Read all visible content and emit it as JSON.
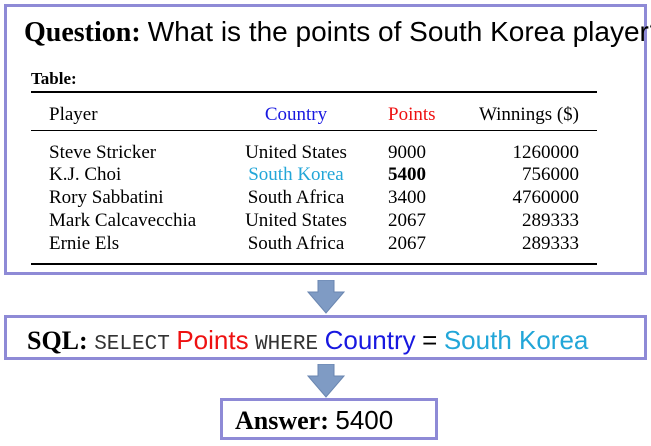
{
  "question": {
    "label": "Question:",
    "text": "What is the points of South Korea player?"
  },
  "table": {
    "label": "Table:",
    "headers": [
      "Player",
      "Country",
      "Points",
      "Winnings ($)"
    ],
    "rows": [
      [
        "Steve Stricker",
        "United States",
        "9000",
        "1260000"
      ],
      [
        "K.J. Choi",
        "South Korea",
        "5400",
        "756000"
      ],
      [
        "Rory Sabbatini",
        "South Africa",
        "3400",
        "4760000"
      ],
      [
        "Mark Calcavecchia",
        "United States",
        "2067",
        "289333"
      ],
      [
        "Ernie Els",
        "South Africa",
        "2067",
        "289333"
      ]
    ]
  },
  "sql": {
    "label": "SQL:",
    "select_kw": "SELECT",
    "column": "Points",
    "where_kw": "WHERE",
    "cond_column": "Country",
    "operator": "=",
    "value": "South Korea"
  },
  "answer": {
    "label": "Answer:",
    "value": "5400"
  },
  "colors": {
    "box_border": "#8e8ad6",
    "arrow": "#7f9bc4",
    "country": "#1818e0",
    "points": "#ee1111",
    "south_korea": "#22a6d8"
  }
}
